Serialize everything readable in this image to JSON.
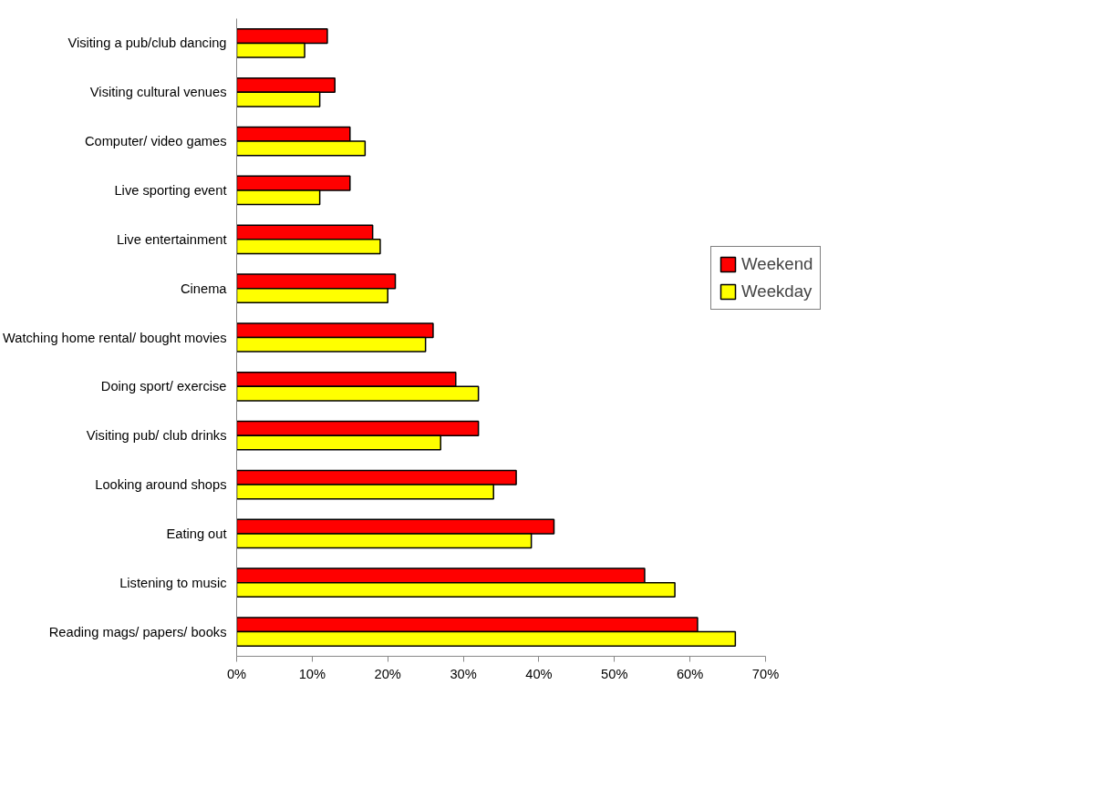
{
  "chart_data": {
    "type": "bar",
    "orientation": "horizontal",
    "categories": [
      "Visiting a pub/club dancing",
      "Visiting cultural venues",
      "Computer/ video games",
      "Live sporting event",
      "Live entertainment",
      "Cinema",
      "Watching home rental/ bought movies",
      "Doing sport/ exercise",
      "Visiting pub/ club drinks",
      "Looking around shops",
      "Eating out",
      "Listening to music",
      "Reading mags/ papers/ books"
    ],
    "series": [
      {
        "name": "Weekend",
        "color": "#ff0000",
        "values": [
          12,
          13,
          15,
          15,
          18,
          21,
          26,
          29,
          32,
          37,
          42,
          54,
          61
        ]
      },
      {
        "name": "Weekday",
        "color": "#ffff00",
        "values": [
          9,
          11,
          17,
          11,
          19,
          20,
          25,
          32,
          27,
          34,
          39,
          58,
          66
        ]
      }
    ],
    "xlim": [
      0,
      70
    ],
    "xticks": [
      {
        "value": 0,
        "label": "0%"
      },
      {
        "value": 10,
        "label": "10%"
      },
      {
        "value": 20,
        "label": "20%"
      },
      {
        "value": 30,
        "label": "30%"
      },
      {
        "value": 40,
        "label": "40%"
      },
      {
        "value": 50,
        "label": "50%"
      },
      {
        "value": 60,
        "label": "60%"
      },
      {
        "value": 70,
        "label": "70%"
      }
    ],
    "grid": false,
    "legend": "right"
  }
}
